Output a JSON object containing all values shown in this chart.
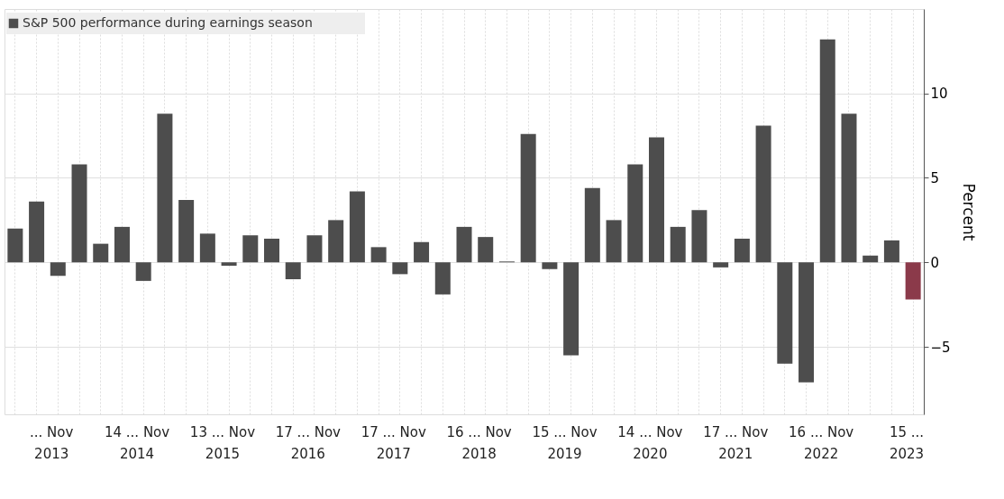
{
  "chart_data": {
    "type": "bar",
    "categories": [
      null,
      null,
      null,
      null,
      null,
      null,
      null,
      null,
      null,
      null,
      null,
      null,
      null,
      null,
      null,
      null,
      null,
      null,
      null,
      null,
      null,
      null,
      null,
      null,
      null,
      null,
      null,
      null,
      null,
      null,
      null,
      null,
      null,
      null,
      null,
      null,
      null,
      null,
      null,
      null,
      null,
      null,
      null
    ],
    "series": [
      {
        "name": "S&P 500 performance during earnings season",
        "color": "#4d4d4d",
        "values": [
          2.0,
          3.6,
          -0.8,
          5.8,
          1.1,
          2.1,
          -1.1,
          8.8,
          3.7,
          1.7,
          -0.2,
          1.6,
          1.4,
          -1.0,
          1.6,
          2.5,
          4.2,
          0.9,
          -0.7,
          1.2,
          -1.9,
          2.1,
          1.5,
          0.05,
          7.6,
          -0.4,
          -5.5,
          4.4,
          2.5,
          5.8,
          7.4,
          2.1,
          3.1,
          -0.3,
          1.4,
          8.1,
          -6.0,
          -7.1,
          13.2,
          8.8,
          0.4,
          1.3,
          -2.2
        ],
        "colors": [
          "#4d4d4d",
          "#4d4d4d",
          "#4d4d4d",
          "#4d4d4d",
          "#4d4d4d",
          "#4d4d4d",
          "#4d4d4d",
          "#4d4d4d",
          "#4d4d4d",
          "#4d4d4d",
          "#4d4d4d",
          "#4d4d4d",
          "#4d4d4d",
          "#4d4d4d",
          "#4d4d4d",
          "#4d4d4d",
          "#4d4d4d",
          "#4d4d4d",
          "#4d4d4d",
          "#4d4d4d",
          "#4d4d4d",
          "#4d4d4d",
          "#4d4d4d",
          "#4d4d4d",
          "#4d4d4d",
          "#4d4d4d",
          "#4d4d4d",
          "#4d4d4d",
          "#4d4d4d",
          "#4d4d4d",
          "#4d4d4d",
          "#4d4d4d",
          "#4d4d4d",
          "#4d4d4d",
          "#4d4d4d",
          "#4d4d4d",
          "#4d4d4d",
          "#4d4d4d",
          "#4d4d4d",
          "#4d4d4d",
          "#4d4d4d",
          "#4d4d4d",
          "#8b3a4a"
        ]
      }
    ],
    "ylabel": "Percent",
    "ylim": [
      -9,
      15
    ],
    "yticks": [
      -5,
      0,
      5,
      10
    ],
    "grid": true,
    "legend": "top left",
    "annotations": [
      "... Nov",
      "14 ... Nov",
      "13 ... Nov",
      "17 ... Nov",
      "17 ... Nov",
      "16 ... Nov",
      "15 ... Nov",
      "14 ... Nov",
      "17 ... Nov",
      "16 ... Nov",
      "15 ...",
      "2013",
      "2014",
      "2015",
      "2016",
      "2017",
      "2018",
      "2019",
      "2020",
      "2021",
      "2022",
      "2023"
    ]
  }
}
